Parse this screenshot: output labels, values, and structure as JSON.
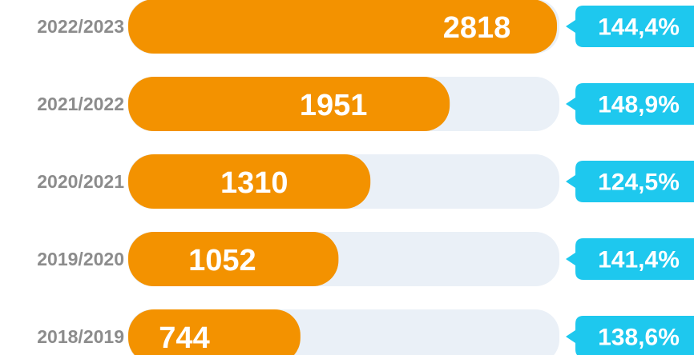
{
  "chart_data": {
    "type": "bar",
    "orientation": "horizontal",
    "categories": [
      "2022/2023",
      "2021/2022",
      "2020/2021",
      "2019/2020",
      "2018/2019"
    ],
    "values": [
      2818,
      1951,
      1310,
      1052,
      744
    ],
    "color": "#f39200",
    "track_color": "#eaf0f7",
    "growth": {
      "values": [
        144.4,
        148.9,
        124.5,
        141.4,
        138.6
      ],
      "value_labels": [
        "144,4%",
        "148,9%",
        "124,5%",
        "141,4%",
        "138,6%"
      ],
      "color": "#1ec8ee"
    }
  }
}
